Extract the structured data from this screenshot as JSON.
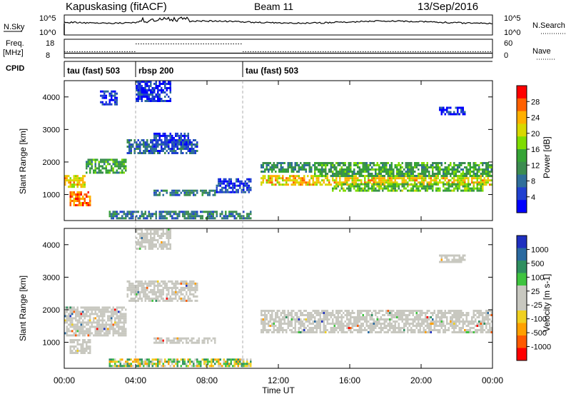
{
  "header": {
    "station": "Kapuskasing (fitACF)",
    "beam": "Beam 11",
    "date": "13/Sep/2016"
  },
  "noise_panel": {
    "left_label": "N.Sky",
    "left_ticks": [
      "10^5",
      "10^0"
    ],
    "right_label": "N.Search",
    "right_ticks": [
      "10^5",
      "10^0"
    ]
  },
  "freq_panel": {
    "left_label_1": "Freq.",
    "left_label_2": "[MHz]",
    "left_ticks": [
      "18",
      "8"
    ],
    "right_label": "Nave",
    "right_ticks": [
      "60",
      "0"
    ]
  },
  "cpid": {
    "label": "CPID",
    "segments": [
      {
        "name": "tau (fast) 503",
        "start_hour": 0,
        "end_hour": 4
      },
      {
        "name": "rbsp 200",
        "start_hour": 4,
        "end_hour": 10
      },
      {
        "name": "tau (fast) 503",
        "start_hour": 10,
        "end_hour": 24
      }
    ]
  },
  "power_panel": {
    "ylabel": "Slant Range [km]",
    "yticks": [
      1000,
      2000,
      3000,
      4000
    ],
    "colorbar_title": "Power [dB]",
    "colorbar_ticks": [
      "28",
      "24",
      "20",
      "16",
      "12",
      "8",
      "4"
    ],
    "colorbar_colors": [
      "#ff0000",
      "#ff6000",
      "#ffb000",
      "#d8d800",
      "#7fdc00",
      "#36a436",
      "#3c8c50",
      "#2f6e9a",
      "#2040d0",
      "#0000ff"
    ]
  },
  "velocity_panel": {
    "ylabel": "Slant Range [km]",
    "yticks": [
      1000,
      2000,
      3000,
      4000
    ],
    "colorbar_title": "Velocity [m s-1]",
    "colorbar_ticks": [
      "1000",
      "500",
      "100",
      "25",
      "-25",
      "-100",
      "-500",
      "-1000"
    ],
    "colorbar_colors": [
      "#1f30c0",
      "#2a6aa0",
      "#2f8f60",
      "#3fc43f",
      "#c8c8c0",
      "#c8c8c0",
      "#f0d020",
      "#ffa000",
      "#ff5a00",
      "#ff0000"
    ],
    "gs_color": "#c8c8c0"
  },
  "xaxis": {
    "label": "Time UT",
    "ticks": [
      "00:00",
      "04:00",
      "08:00",
      "12:00",
      "16:00",
      "20:00",
      "00:00"
    ]
  },
  "chart_data": {
    "type": "heatmap",
    "x_unit": "hours UT",
    "y_unit": "km",
    "xlim": [
      0,
      24
    ],
    "ylim": [
      200,
      4500
    ],
    "power_regions": [
      {
        "t0": 0.0,
        "t1": 1.2,
        "r0": 1250,
        "r1": 1600,
        "level": 22
      },
      {
        "t0": 0.3,
        "t1": 1.5,
        "r0": 700,
        "r1": 1100,
        "level": 26
      },
      {
        "t0": 1.2,
        "t1": 3.5,
        "r0": 1700,
        "r1": 2100,
        "level": 14
      },
      {
        "t0": 3.5,
        "t1": 7.5,
        "r0": 2300,
        "r1": 2700,
        "level": 8
      },
      {
        "t0": 5.0,
        "t1": 7.0,
        "r0": 2500,
        "r1": 2900,
        "level": 6
      },
      {
        "t0": 5.0,
        "t1": 8.5,
        "r0": 1000,
        "r1": 1150,
        "level": 10
      },
      {
        "t0": 8.5,
        "t1": 10.5,
        "r0": 1100,
        "r1": 1500,
        "level": 6
      },
      {
        "t0": 2.5,
        "t1": 10.5,
        "r0": 250,
        "r1": 500,
        "level": 10
      },
      {
        "t0": 11.0,
        "t1": 24.0,
        "r0": 1300,
        "r1": 1600,
        "level": 22
      },
      {
        "t0": 11.0,
        "t1": 14.5,
        "r0": 1700,
        "r1": 2000,
        "level": 12
      },
      {
        "t0": 14.0,
        "t1": 24.0,
        "r0": 1600,
        "r1": 2000,
        "level": 14
      },
      {
        "t0": 15.0,
        "t1": 23.5,
        "r0": 1150,
        "r1": 1350,
        "level": 16
      },
      {
        "t0": 4.0,
        "t1": 6.0,
        "r0": 3900,
        "r1": 4500,
        "level": 5
      },
      {
        "t0": 2.0,
        "t1": 3.0,
        "r0": 3800,
        "r1": 4200,
        "level": 5
      },
      {
        "t0": 21.0,
        "t1": 22.5,
        "r0": 3500,
        "r1": 3700,
        "level": 5
      }
    ],
    "velocity_regions": [
      {
        "t0": 0.0,
        "t1": 3.5,
        "r0": 1200,
        "r1": 2100,
        "class": "gs"
      },
      {
        "t0": 0.3,
        "t1": 1.5,
        "r0": 700,
        "r1": 1100,
        "class": "gs"
      },
      {
        "t0": 3.5,
        "t1": 7.5,
        "r0": 2300,
        "r1": 2900,
        "class": "gs"
      },
      {
        "t0": 5.0,
        "t1": 8.5,
        "r0": 1000,
        "r1": 1150,
        "class": "gs"
      },
      {
        "t0": 2.5,
        "t1": 10.5,
        "r0": 250,
        "r1": 500,
        "class": "slow"
      },
      {
        "t0": 11.0,
        "t1": 24.0,
        "r0": 1300,
        "r1": 2000,
        "class": "gs"
      },
      {
        "t0": 4.0,
        "t1": 6.0,
        "r0": 3900,
        "r1": 4500,
        "class": "gs"
      },
      {
        "t0": 21.0,
        "t1": 22.5,
        "r0": 3500,
        "r1": 3700,
        "class": "gs"
      }
    ],
    "frequency_mhz": 10.5,
    "nave_segments": [
      {
        "t0": 0.0,
        "t1": 4.0,
        "value": 20
      },
      {
        "t0": 4.0,
        "t1": 10.0,
        "value": 45
      },
      {
        "t0": 10.0,
        "t1": 24.0,
        "value": 20
      }
    ]
  }
}
